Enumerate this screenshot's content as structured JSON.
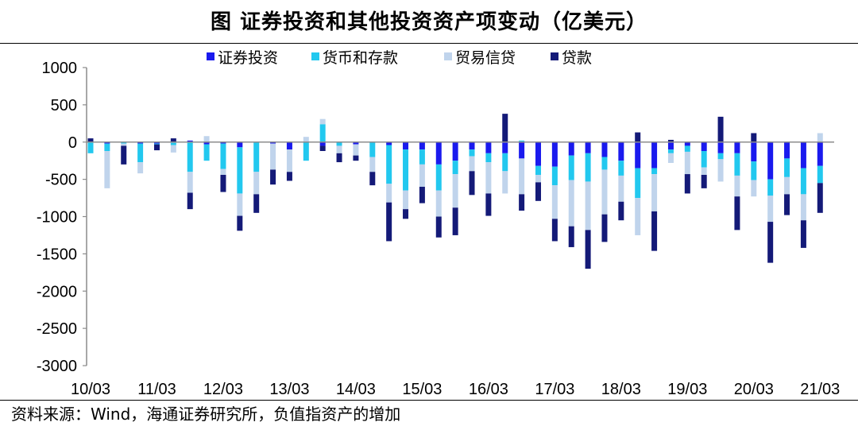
{
  "title": "图  证券投资和其他投资资产项变动（亿美元）",
  "source": "资料来源：Wind，海通证券研究所，负值指资产的增加",
  "colors": {
    "securities": "#1a1aee",
    "currency": "#22c8ef",
    "trade": "#c0d4ec",
    "loans": "#141a78",
    "axis": "#8c8c8c"
  },
  "chart_data": {
    "type": "bar",
    "stacked": true,
    "title": "证券投资和其他投资资产项变动（亿美元）",
    "ylim": [
      -3000,
      1000
    ],
    "yticks": [
      "1000",
      "500",
      "0",
      "-500",
      "-1000",
      "-1500",
      "-2000",
      "-2500",
      "-3000"
    ],
    "xticks": [
      "10/03",
      "11/03",
      "12/03",
      "13/03",
      "14/03",
      "15/03",
      "16/03",
      "17/03",
      "18/03",
      "19/03",
      "20/03",
      "21/03"
    ],
    "categories": [
      "10Q1",
      "10Q2",
      "10Q3",
      "10Q4",
      "11Q1",
      "11Q2",
      "11Q3",
      "11Q4",
      "12Q1",
      "12Q2",
      "12Q3",
      "12Q4",
      "13Q1",
      "13Q2",
      "13Q3",
      "13Q4",
      "14Q1",
      "14Q2",
      "14Q3",
      "14Q4",
      "15Q1",
      "15Q2",
      "15Q3",
      "15Q4",
      "16Q1",
      "16Q2",
      "16Q3",
      "16Q4",
      "17Q1",
      "17Q2",
      "17Q3",
      "17Q4",
      "18Q1",
      "18Q2",
      "18Q3",
      "18Q4",
      "19Q1",
      "19Q2",
      "19Q3",
      "19Q4",
      "20Q1",
      "20Q2",
      "20Q3",
      "20Q4",
      "21Q1"
    ],
    "series": [
      {
        "name": "证券投资",
        "key": "securities",
        "values": [
          0,
          -20,
          0,
          -20,
          -20,
          -10,
          20,
          -30,
          -20,
          -70,
          0,
          -20,
          -100,
          0,
          -50,
          0,
          -30,
          0,
          -40,
          -100,
          -100,
          -300,
          -250,
          -100,
          -150,
          -150,
          -220,
          -320,
          -330,
          -180,
          -150,
          -200,
          -250,
          -350,
          -350,
          -100,
          -50,
          -120,
          -150,
          -150,
          -260,
          -500,
          -220,
          -350,
          -320
        ]
      },
      {
        "name": "货币和存款",
        "key": "currency",
        "values": [
          -150,
          -100,
          -20,
          -250,
          -10,
          -30,
          -400,
          -220,
          -340,
          -620,
          -400,
          0,
          0,
          -250,
          240,
          -50,
          0,
          -200,
          -520,
          -550,
          -200,
          -350,
          -180,
          -90,
          -120,
          -240,
          20,
          -120,
          -250,
          -330,
          -380,
          -170,
          -200,
          -400,
          -80,
          -50,
          -80,
          -220,
          -80,
          -300,
          -250,
          -220,
          -250,
          -350,
          -230
        ]
      },
      {
        "name": "贸易信贷",
        "key": "trade",
        "values": [
          0,
          -500,
          -30,
          -150,
          0,
          -100,
          -280,
          80,
          -80,
          -300,
          -300,
          -350,
          -300,
          70,
          70,
          -100,
          -150,
          -200,
          -250,
          -250,
          -300,
          -350,
          -450,
          -200,
          -420,
          -300,
          -480,
          -100,
          -450,
          -620,
          -650,
          -600,
          -350,
          -500,
          -500,
          -130,
          -300,
          -100,
          -300,
          -280,
          -220,
          -350,
          -230,
          -350,
          120
        ]
      },
      {
        "name": "贷款",
        "key": "loans",
        "values": [
          50,
          0,
          -250,
          0,
          -80,
          50,
          -220,
          0,
          -230,
          -200,
          -250,
          -200,
          -120,
          0,
          -70,
          -120,
          -70,
          -180,
          -520,
          -130,
          -220,
          -280,
          -370,
          -320,
          -300,
          380,
          -220,
          -250,
          -300,
          -280,
          -520,
          -370,
          -250,
          130,
          -530,
          30,
          -260,
          -180,
          340,
          -450,
          120,
          -550,
          -280,
          -370,
          -400
        ]
      }
    ]
  }
}
